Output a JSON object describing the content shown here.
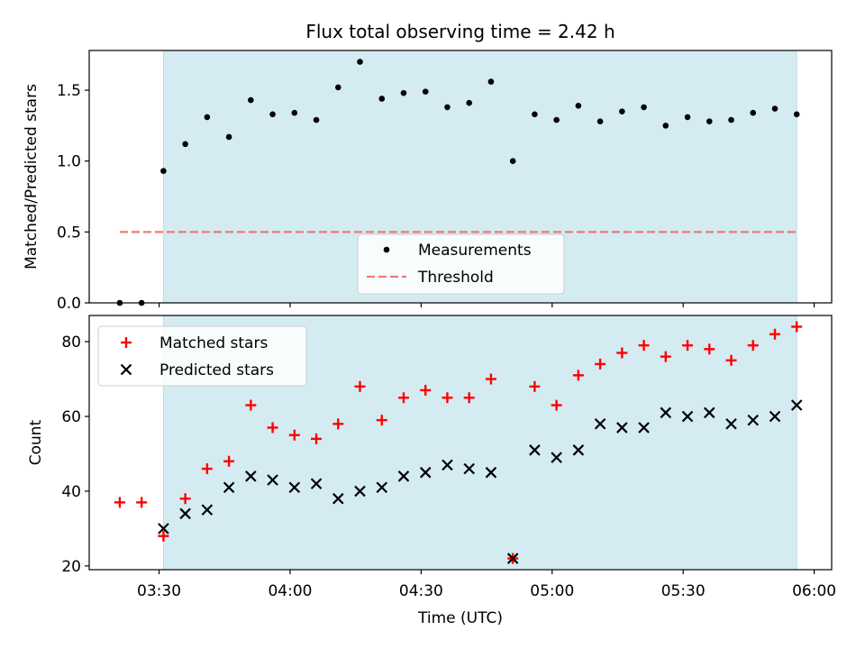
{
  "chart_data": [
    {
      "type": "scatter",
      "title": "Flux total observing time = 2.42 h",
      "ylabel": "Matched/Predicted stars",
      "xlabel": "",
      "xlim": [
        "03:14",
        "06:04"
      ],
      "ylim": [
        0,
        1.78
      ],
      "yticks": [
        0.0,
        0.5,
        1.0,
        1.5
      ],
      "ytick_labels": [
        "0.0",
        "0.5",
        "1.0",
        "1.5"
      ],
      "shaded_region": [
        "03:31",
        "05:56"
      ],
      "shade_color": "#d4ebf1",
      "legend": {
        "position": "bottom-center",
        "entries": [
          "Measurements",
          "Threshold"
        ]
      },
      "series": [
        {
          "name": "Measurements",
          "marker": "dot",
          "color": "#000000",
          "x": [
            "03:21",
            "03:26",
            "03:31",
            "03:36",
            "03:41",
            "03:46",
            "03:51",
            "03:56",
            "04:01",
            "04:06",
            "04:11",
            "04:16",
            "04:21",
            "04:26",
            "04:31",
            "04:36",
            "04:41",
            "04:46",
            "04:51",
            "04:56",
            "05:01",
            "05:06",
            "05:11",
            "05:16",
            "05:21",
            "05:26",
            "05:31",
            "05:36",
            "05:41",
            "05:46",
            "05:51",
            "05:56"
          ],
          "y": [
            0.0,
            0.0,
            0.93,
            1.12,
            1.31,
            1.17,
            1.43,
            1.33,
            1.34,
            1.29,
            1.52,
            1.7,
            1.44,
            1.48,
            1.49,
            1.38,
            1.41,
            1.56,
            1.0,
            1.33,
            1.29,
            1.39,
            1.28,
            1.35,
            1.38,
            1.25,
            1.31,
            1.28,
            1.29,
            1.34,
            1.37,
            1.33
          ]
        },
        {
          "name": "Threshold",
          "marker": "dashed-line",
          "color": "#f07878",
          "x": [
            "03:21",
            "05:56"
          ],
          "y": [
            0.5,
            0.5
          ]
        }
      ]
    },
    {
      "type": "scatter",
      "title": "",
      "ylabel": "Count",
      "xlabel": "Time (UTC)",
      "xlim": [
        "03:14",
        "06:04"
      ],
      "ylim": [
        19,
        87
      ],
      "yticks": [
        20,
        40,
        60,
        80
      ],
      "ytick_labels": [
        "20",
        "40",
        "60",
        "80"
      ],
      "xticks": [
        "03:30",
        "04:00",
        "04:30",
        "05:00",
        "05:30",
        "06:00"
      ],
      "shaded_region": [
        "03:31",
        "05:56"
      ],
      "shade_color": "#d4ebf1",
      "legend": {
        "position": "top-left",
        "entries": [
          "Matched stars",
          "Predicted stars"
        ]
      },
      "series": [
        {
          "name": "Matched stars",
          "marker": "plus",
          "color": "#ff0000",
          "x": [
            "03:21",
            "03:26",
            "03:31",
            "03:36",
            "03:41",
            "03:46",
            "03:51",
            "03:56",
            "04:01",
            "04:06",
            "04:11",
            "04:16",
            "04:21",
            "04:26",
            "04:31",
            "04:36",
            "04:41",
            "04:46",
            "04:51",
            "04:56",
            "05:01",
            "05:06",
            "05:11",
            "05:16",
            "05:21",
            "05:26",
            "05:31",
            "05:36",
            "05:41",
            "05:46",
            "05:51",
            "05:56"
          ],
          "y": [
            37,
            37,
            28,
            38,
            46,
            48,
            63,
            57,
            55,
            54,
            58,
            68,
            59,
            65,
            67,
            65,
            65,
            70,
            22,
            68,
            63,
            71,
            74,
            77,
            79,
            76,
            79,
            78,
            75,
            79,
            82,
            84
          ]
        },
        {
          "name": "Predicted stars",
          "marker": "x",
          "color": "#000000",
          "x": [
            "03:31",
            "03:36",
            "03:41",
            "03:46",
            "03:51",
            "03:56",
            "04:01",
            "04:06",
            "04:11",
            "04:16",
            "04:21",
            "04:26",
            "04:31",
            "04:36",
            "04:41",
            "04:46",
            "04:51",
            "04:56",
            "05:01",
            "05:06",
            "05:11",
            "05:16",
            "05:21",
            "05:26",
            "05:31",
            "05:36",
            "05:41",
            "05:46",
            "05:51",
            "05:56"
          ],
          "y": [
            30,
            34,
            35,
            41,
            44,
            43,
            41,
            42,
            38,
            40,
            41,
            44,
            45,
            47,
            46,
            45,
            22,
            51,
            49,
            51,
            58,
            57,
            57,
            61,
            60,
            61,
            58,
            59,
            60,
            63
          ]
        }
      ]
    }
  ]
}
